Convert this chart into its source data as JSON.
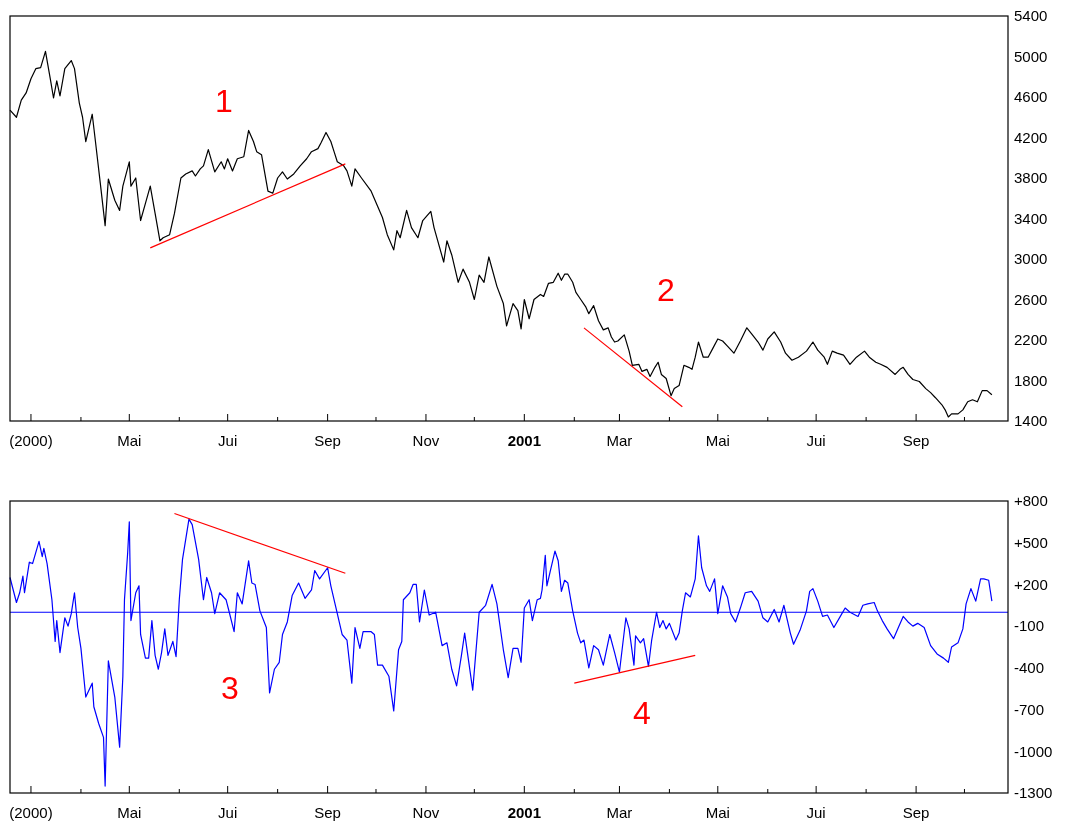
{
  "chart_data": [
    {
      "type": "line",
      "xlim": [
        "2000-02-17",
        "2001-10-28"
      ],
      "ylim": [
        1400,
        5400
      ],
      "xticks": [
        {
          "value": "2000-03",
          "label": "(2000)"
        },
        {
          "value": "2000-04",
          "label": null
        },
        {
          "value": "2000-05",
          "label": "Mai"
        },
        {
          "value": "2000-06",
          "label": null
        },
        {
          "value": "2000-07",
          "label": "Jui"
        },
        {
          "value": "2000-08",
          "label": null
        },
        {
          "value": "2000-09",
          "label": "Sep"
        },
        {
          "value": "2000-10",
          "label": null
        },
        {
          "value": "2000-11",
          "label": "Nov"
        },
        {
          "value": "2000-12",
          "label": null
        },
        {
          "value": "2001-01",
          "label": "2001"
        },
        {
          "value": "2001-02",
          "label": null
        },
        {
          "value": "2001-03",
          "label": "Mar"
        },
        {
          "value": "2001-04",
          "label": null
        },
        {
          "value": "2001-05",
          "label": "Mai"
        },
        {
          "value": "2001-06",
          "label": null
        },
        {
          "value": "2001-07",
          "label": "Jui"
        },
        {
          "value": "2001-08",
          "label": null
        },
        {
          "value": "2001-09",
          "label": "Sep"
        },
        {
          "value": "2001-10",
          "label": null
        }
      ],
      "yticks": [
        5400,
        5000,
        4600,
        4200,
        3800,
        3400,
        3000,
        2600,
        2200,
        1800,
        1400
      ],
      "grid": false,
      "series": [
        {
          "color": "#000000",
          "x": [
            "2000-02-17",
            "2000-02-21",
            "2000-02-24",
            "2000-02-27",
            "2000-03-01",
            "2000-03-04",
            "2000-03-07",
            "2000-03-10",
            "2000-03-13",
            "2000-03-15",
            "2000-03-17",
            "2000-03-19",
            "2000-03-22",
            "2000-03-26",
            "2000-03-28",
            "2000-03-31",
            "2000-04-02",
            "2000-04-04",
            "2000-04-08",
            "2000-04-10",
            "2000-04-13",
            "2000-04-16",
            "2000-04-18",
            "2000-04-22",
            "2000-04-25",
            "2000-04-27",
            "2000-05-01",
            "2000-05-02",
            "2000-05-05",
            "2000-05-08",
            "2000-05-11",
            "2000-05-14",
            "2000-05-17",
            "2000-05-20",
            "2000-05-22",
            "2000-05-26",
            "2000-05-29",
            "2000-06-02",
            "2000-06-05",
            "2000-06-09",
            "2000-06-11",
            "2000-06-14",
            "2000-06-16",
            "2000-06-19",
            "2000-06-23",
            "2000-06-27",
            "2000-06-29",
            "2000-07-01",
            "2000-07-04",
            "2000-07-07",
            "2000-07-11",
            "2000-07-14",
            "2000-07-17",
            "2000-07-19",
            "2000-07-22",
            "2000-07-26",
            "2000-07-29",
            "2000-08-01",
            "2000-08-04",
            "2000-08-07",
            "2000-08-11",
            "2000-08-15",
            "2000-08-19",
            "2000-08-22",
            "2000-08-26",
            "2000-08-28",
            "2000-08-31",
            "2000-09-03",
            "2000-09-05",
            "2000-09-07",
            "2000-09-11",
            "2000-09-13",
            "2000-09-16",
            "2000-09-18",
            "2000-09-22",
            "2000-09-28",
            "2000-10-02",
            "2000-10-05",
            "2000-10-08",
            "2000-10-12",
            "2000-10-14",
            "2000-10-16",
            "2000-10-20",
            "2000-10-23",
            "2000-10-27",
            "2000-10-30",
            "2000-11-04",
            "2000-11-06",
            "2000-11-12",
            "2000-11-14",
            "2000-11-17",
            "2000-11-21",
            "2000-11-24",
            "2000-11-28",
            "2000-12-01",
            "2000-12-04",
            "2000-12-07",
            "2000-12-10",
            "2000-12-15",
            "2000-12-19",
            "2000-12-21",
            "2000-12-25",
            "2000-12-28",
            "2000-12-30",
            "2001-01-01",
            "2001-01-04",
            "2001-01-07",
            "2001-01-11",
            "2001-01-13",
            "2001-01-16",
            "2001-01-19",
            "2001-01-22",
            "2001-01-24",
            "2001-01-26",
            "2001-01-28",
            "2001-01-31",
            "2001-02-02",
            "2001-02-05",
            "2001-02-08",
            "2001-02-10",
            "2001-02-13",
            "2001-02-15",
            "2001-02-16",
            "2001-02-19",
            "2001-02-22",
            "2001-02-24",
            "2001-02-26",
            "2001-02-28",
            "2001-03-04",
            "2001-03-07",
            "2001-03-09",
            "2001-03-13",
            "2001-03-15",
            "2001-03-18",
            "2001-03-20",
            "2001-03-23",
            "2001-03-25",
            "2001-03-27",
            "2001-03-30",
            "2001-04-02",
            "2001-04-04",
            "2001-04-07",
            "2001-04-10",
            "2001-04-13",
            "2001-04-15",
            "2001-04-17",
            "2001-04-19",
            "2001-04-22",
            "2001-04-25",
            "2001-04-28",
            "2001-05-01",
            "2001-05-04",
            "2001-05-07",
            "2001-05-11",
            "2001-05-15",
            "2001-05-19",
            "2001-05-22",
            "2001-05-26",
            "2001-05-29",
            "2001-06-01",
            "2001-06-05",
            "2001-06-09",
            "2001-06-12",
            "2001-06-16",
            "2001-06-20",
            "2001-06-25",
            "2001-06-29",
            "2001-07-02",
            "2001-07-06",
            "2001-07-08",
            "2001-07-11",
            "2001-07-14",
            "2001-07-18",
            "2001-07-22",
            "2001-07-26",
            "2001-07-31",
            "2001-08-03",
            "2001-08-07",
            "2001-08-10",
            "2001-08-14",
            "2001-08-19",
            "2001-08-22",
            "2001-08-24",
            "2001-08-27",
            "2001-08-30",
            "2001-09-03",
            "2001-09-07",
            "2001-09-10",
            "2001-09-13",
            "2001-09-17",
            "2001-09-19",
            "2001-09-21",
            "2001-09-23",
            "2001-09-27",
            "2001-09-30",
            "2001-10-03",
            "2001-10-06",
            "2001-10-09",
            "2001-10-12",
            "2001-10-15",
            "2001-10-18"
          ],
          "values": [
            4470,
            4400,
            4570,
            4640,
            4780,
            4880,
            4890,
            5050,
            4780,
            4590,
            4760,
            4610,
            4880,
            4960,
            4880,
            4540,
            4400,
            4160,
            4430,
            4160,
            3750,
            3330,
            3790,
            3580,
            3480,
            3720,
            3960,
            3720,
            3800,
            3380,
            3550,
            3720,
            3450,
            3180,
            3210,
            3240,
            3450,
            3800,
            3840,
            3870,
            3820,
            3890,
            3920,
            4080,
            3860,
            3960,
            3890,
            3990,
            3870,
            3990,
            4010,
            4270,
            4160,
            4060,
            4030,
            3670,
            3650,
            3800,
            3860,
            3790,
            3840,
            3920,
            3990,
            4060,
            4090,
            4150,
            4250,
            4160,
            4060,
            3960,
            3920,
            3870,
            3720,
            3890,
            3800,
            3670,
            3520,
            3410,
            3240,
            3090,
            3280,
            3210,
            3480,
            3310,
            3210,
            3380,
            3470,
            3310,
            2970,
            3180,
            3040,
            2770,
            2900,
            2770,
            2600,
            2840,
            2770,
            3020,
            2730,
            2560,
            2340,
            2560,
            2490,
            2310,
            2600,
            2410,
            2600,
            2650,
            2630,
            2760,
            2770,
            2860,
            2790,
            2850,
            2850,
            2770,
            2670,
            2600,
            2530,
            2460,
            2540,
            2440,
            2390,
            2300,
            2320,
            2230,
            2180,
            2190,
            2250,
            2090,
            1950,
            1960,
            1890,
            1910,
            1840,
            1930,
            1980,
            1860,
            1820,
            1650,
            1720,
            1750,
            1950,
            1930,
            1910,
            2030,
            2180,
            2030,
            2030,
            2120,
            2210,
            2190,
            2140,
            2070,
            2190,
            2320,
            2260,
            2180,
            2100,
            2210,
            2280,
            2180,
            2070,
            2000,
            2030,
            2090,
            2180,
            2100,
            2030,
            1960,
            2090,
            2070,
            2050,
            1960,
            2030,
            2090,
            2030,
            1980,
            1960,
            1930,
            1860,
            1910,
            1930,
            1860,
            1810,
            1790,
            1720,
            1680,
            1630,
            1560,
            1510,
            1440,
            1470,
            1470,
            1510,
            1590,
            1610,
            1590,
            1700,
            1700,
            1660
          ]
        },
        {
          "type": "line",
          "color": "#ff0000",
          "x": [
            "2000-05-14",
            "2000-09-12"
          ],
          "values": [
            3110,
            3940
          ]
        },
        {
          "type": "line",
          "color": "#ff0000",
          "x": [
            "2001-02-07",
            "2001-04-09"
          ],
          "values": [
            2320,
            1540
          ]
        }
      ],
      "annotations": [
        "1",
        "2"
      ]
    },
    {
      "type": "line",
      "xlim": [
        "2000-02-17",
        "2001-10-28"
      ],
      "ylim": [
        -1300,
        800
      ],
      "xticks": [
        {
          "value": "2000-03",
          "label": "(2000)"
        },
        {
          "value": "2000-04",
          "label": null
        },
        {
          "value": "2000-05",
          "label": "Mai"
        },
        {
          "value": "2000-06",
          "label": null
        },
        {
          "value": "2000-07",
          "label": "Jui"
        },
        {
          "value": "2000-08",
          "label": null
        },
        {
          "value": "2000-09",
          "label": "Sep"
        },
        {
          "value": "2000-10",
          "label": null
        },
        {
          "value": "2000-11",
          "label": "Nov"
        },
        {
          "value": "2000-12",
          "label": null
        },
        {
          "value": "2001-01",
          "label": "2001"
        },
        {
          "value": "2001-02",
          "label": null
        },
        {
          "value": "2001-03",
          "label": "Mar"
        },
        {
          "value": "2001-04",
          "label": null
        },
        {
          "value": "2001-05",
          "label": "Mai"
        },
        {
          "value": "2001-06",
          "label": null
        },
        {
          "value": "2001-07",
          "label": "Jui"
        },
        {
          "value": "2001-08",
          "label": null
        },
        {
          "value": "2001-09",
          "label": "Sep"
        },
        {
          "value": "2001-10",
          "label": null
        }
      ],
      "yticks": [
        {
          "value": 800,
          "label": "+800"
        },
        {
          "value": 500,
          "label": "+500"
        },
        {
          "value": 200,
          "label": "+200"
        },
        -100,
        -400,
        -700,
        -1000,
        -1300
      ],
      "grid": false,
      "series": [
        {
          "color": "#0000ff",
          "x": [
            "2000-02-17",
            "2000-02-21",
            "2000-02-23",
            "2000-02-25",
            "2000-02-26",
            "2000-02-29",
            "2000-03-02",
            "2000-03-06",
            "2000-03-08",
            "2000-03-09",
            "2000-03-11",
            "2000-03-14",
            "2000-03-16",
            "2000-03-17",
            "2000-03-19",
            "2000-03-22",
            "2000-03-24",
            "2000-03-26",
            "2000-03-28",
            "2000-03-30",
            "2000-04-01",
            "2000-04-04",
            "2000-04-08",
            "2000-04-09",
            "2000-04-12",
            "2000-04-15",
            "2000-04-16",
            "2000-04-18",
            "2000-04-22",
            "2000-04-25",
            "2000-04-27",
            "2000-04-28",
            "2000-04-30",
            "2000-05-01",
            "2000-05-02",
            "2000-05-05",
            "2000-05-07",
            "2000-05-08",
            "2000-05-11",
            "2000-05-13",
            "2000-05-15",
            "2000-05-17",
            "2000-05-19",
            "2000-05-21",
            "2000-05-23",
            "2000-05-25",
            "2000-05-28",
            "2000-05-30",
            "2000-06-01",
            "2000-06-03",
            "2000-06-07",
            "2000-06-09",
            "2000-06-13",
            "2000-06-16",
            "2000-06-18",
            "2000-06-21",
            "2000-06-23",
            "2000-06-26",
            "2000-06-30",
            "2000-07-02",
            "2000-07-05",
            "2000-07-07",
            "2000-07-10",
            "2000-07-14",
            "2000-07-16",
            "2000-07-18",
            "2000-07-21",
            "2000-07-25",
            "2000-07-27",
            "2000-07-30",
            "2000-08-02",
            "2000-08-04",
            "2000-08-07",
            "2000-08-10",
            "2000-08-14",
            "2000-08-18",
            "2000-08-22",
            "2000-08-24",
            "2000-08-27",
            "2000-09-01",
            "2000-09-03",
            "2000-09-06",
            "2000-09-10",
            "2000-09-13",
            "2000-09-16",
            "2000-09-18",
            "2000-09-21",
            "2000-09-23",
            "2000-09-28",
            "2000-09-30",
            "2000-10-02",
            "2000-10-05",
            "2000-10-09",
            "2000-10-12",
            "2000-10-15",
            "2000-10-17",
            "2000-10-18",
            "2000-10-22",
            "2000-10-24",
            "2000-10-26",
            "2000-10-28",
            "2000-10-31",
            "2000-11-03",
            "2000-11-07",
            "2000-11-11",
            "2000-11-14",
            "2000-11-17",
            "2000-11-20",
            "2000-11-23",
            "2000-11-25",
            "2000-11-30",
            "2000-12-04",
            "2000-12-08",
            "2000-12-12",
            "2000-12-15",
            "2000-12-19",
            "2000-12-22",
            "2000-12-25",
            "2000-12-28",
            "2000-12-30",
            "2001-01-01",
            "2001-01-04",
            "2001-01-06",
            "2001-01-09",
            "2001-01-11",
            "2001-01-12",
            "2001-01-14",
            "2001-01-15",
            "2001-01-17",
            "2001-01-20",
            "2001-01-22",
            "2001-01-24",
            "2001-01-26",
            "2001-01-28",
            "2001-01-31",
            "2001-02-03",
            "2001-02-05",
            "2001-02-07",
            "2001-02-10",
            "2001-02-13",
            "2001-02-16",
            "2001-02-19",
            "2001-02-23",
            "2001-02-26",
            "2001-03-01",
            "2001-03-05",
            "2001-03-07",
            "2001-03-10",
            "2001-03-11",
            "2001-03-14",
            "2001-03-16",
            "2001-03-19",
            "2001-03-21",
            "2001-03-24",
            "2001-03-26",
            "2001-03-28",
            "2001-03-30",
            "2001-04-01",
            "2001-04-05",
            "2001-04-07",
            "2001-04-09",
            "2001-04-11",
            "2001-04-14",
            "2001-04-17",
            "2001-04-19",
            "2001-04-21",
            "2001-04-24",
            "2001-04-26",
            "2001-04-29",
            "2001-05-01",
            "2001-05-04",
            "2001-05-07",
            "2001-05-09",
            "2001-05-12",
            "2001-05-15",
            "2001-05-18",
            "2001-05-22",
            "2001-05-26",
            "2001-05-29",
            "2001-06-01",
            "2001-06-05",
            "2001-06-08",
            "2001-06-11",
            "2001-06-15",
            "2001-06-17",
            "2001-06-21",
            "2001-06-25",
            "2001-06-27",
            "2001-06-29",
            "2001-07-02",
            "2001-07-05",
            "2001-07-08",
            "2001-07-12",
            "2001-07-16",
            "2001-07-19",
            "2001-07-22",
            "2001-07-27",
            "2001-07-30",
            "2001-08-02",
            "2001-08-06",
            "2001-08-08",
            "2001-08-11",
            "2001-08-14",
            "2001-08-18",
            "2001-08-21",
            "2001-08-24",
            "2001-08-27",
            "2001-08-30",
            "2001-09-02",
            "2001-09-06",
            "2001-09-10",
            "2001-09-14",
            "2001-09-18",
            "2001-09-21",
            "2001-09-23",
            "2001-09-27",
            "2001-09-30",
            "2001-10-02",
            "2001-10-05",
            "2001-10-08",
            "2001-10-11",
            "2001-10-13",
            "2001-10-16",
            "2001-10-18"
          ],
          "values": [
            250,
            70,
            140,
            260,
            140,
            360,
            350,
            510,
            400,
            460,
            350,
            90,
            -210,
            -60,
            -290,
            -40,
            -100,
            -10,
            140,
            -110,
            -260,
            -610,
            -510,
            -680,
            -800,
            -900,
            -1250,
            -350,
            -610,
            -970,
            -460,
            90,
            430,
            650,
            -60,
            140,
            190,
            -160,
            -330,
            -330,
            -60,
            -310,
            -410,
            -290,
            -120,
            -310,
            -210,
            -320,
            90,
            380,
            670,
            630,
            380,
            90,
            250,
            140,
            -10,
            140,
            90,
            0,
            -140,
            140,
            60,
            370,
            210,
            200,
            10,
            -110,
            -580,
            -410,
            -360,
            -160,
            -70,
            120,
            210,
            100,
            160,
            300,
            240,
            320,
            190,
            40,
            -160,
            -200,
            -510,
            -110,
            -260,
            -140,
            -140,
            -160,
            -380,
            -380,
            -460,
            -710,
            -270,
            -210,
            90,
            140,
            200,
            200,
            -70,
            160,
            -20,
            0,
            -240,
            -220,
            -410,
            -530,
            -310,
            -150,
            -560,
            0,
            50,
            200,
            60,
            -270,
            -470,
            -260,
            -260,
            -360,
            30,
            90,
            -60,
            90,
            100,
            160,
            410,
            190,
            290,
            440,
            370,
            150,
            230,
            210,
            10,
            -150,
            -220,
            -200,
            -400,
            -240,
            -270,
            -380,
            -160,
            -290,
            -430,
            -40,
            -120,
            -380,
            -170,
            -220,
            -190,
            -390,
            -200,
            0,
            -110,
            -60,
            -120,
            -80,
            -200,
            -150,
            10,
            140,
            110,
            240,
            550,
            320,
            190,
            150,
            240,
            -10,
            190,
            110,
            -10,
            -70,
            30,
            140,
            150,
            80,
            -40,
            -70,
            20,
            -70,
            50,
            -150,
            -230,
            -130,
            10,
            150,
            170,
            80,
            -30,
            -20,
            -110,
            -30,
            30,
            0,
            -30,
            50,
            60,
            70,
            10,
            -60,
            -120,
            -190,
            -110,
            -30,
            -70,
            -100,
            -80,
            -110,
            -240,
            -300,
            -330,
            -360,
            -250,
            -220,
            -120,
            60,
            170,
            80,
            240,
            240,
            230,
            80
          ]
        },
        {
          "type": "line",
          "color": "#ff0000",
          "x": [
            "2000-05-29",
            "2000-09-12"
          ],
          "values": [
            710,
            280
          ]
        },
        {
          "type": "line",
          "color": "#ff0000",
          "x": [
            "2001-02-01",
            "2001-04-17"
          ],
          "values": [
            -510,
            -310
          ]
        }
      ],
      "ref_lines": [
        {
          "axis": "y",
          "value": 0,
          "color": "#0000ff"
        }
      ],
      "annotations": [
        "3",
        "4"
      ]
    }
  ]
}
